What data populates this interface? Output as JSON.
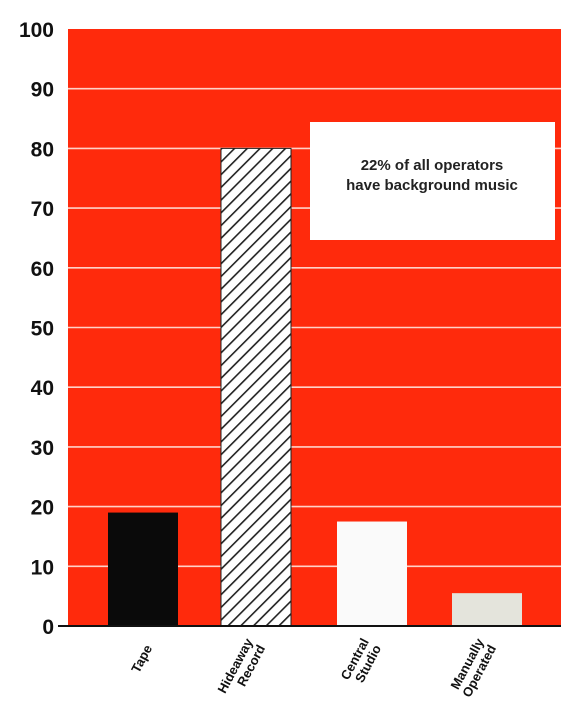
{
  "chart_data": {
    "type": "bar",
    "categories": [
      [
        "Tape"
      ],
      [
        "Hideaway",
        "Record"
      ],
      [
        "Central",
        "Studio"
      ],
      [
        "Manually",
        "Operated"
      ]
    ],
    "values": [
      19,
      80,
      17.5,
      5.5
    ],
    "bar_styles": [
      "solid-black",
      "hatched",
      "solid-white",
      "solid-pale"
    ],
    "ylim": [
      0,
      100
    ],
    "yticks": [
      "0",
      "10",
      "20",
      "30",
      "40",
      "50",
      "60",
      "70",
      "80",
      "90",
      "100"
    ],
    "xlabel": "",
    "ylabel": "",
    "title": "",
    "grid": true,
    "annotation": [
      "22% of all operators",
      "have background music"
    ],
    "colors": {
      "background": "#ff2a0c",
      "grid": "#ffd2c8",
      "tape": "#0a0a0a",
      "hatch": "#222222",
      "central": "#fafafa",
      "manual": "#e4e4dc",
      "annotation_box": "#ffffff"
    }
  }
}
